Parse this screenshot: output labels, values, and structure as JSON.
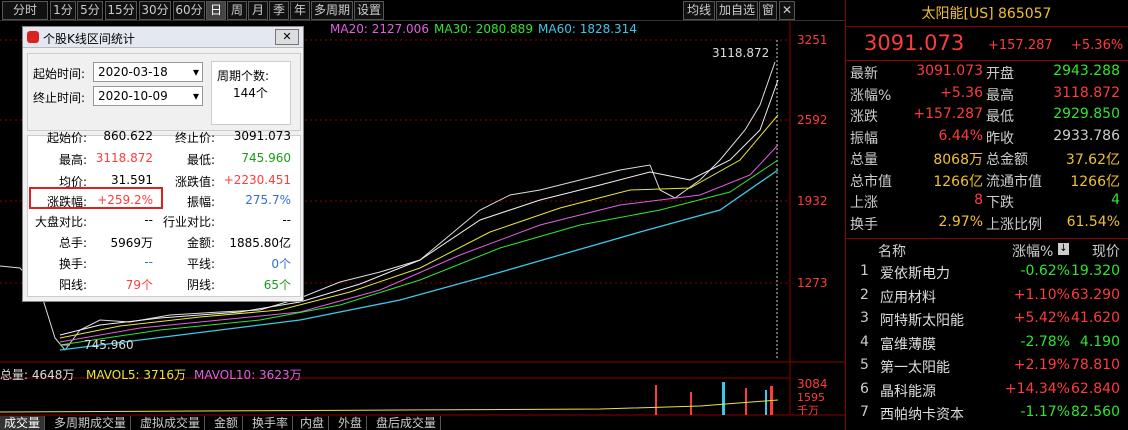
{
  "toolbar": {
    "tabs": [
      "分时",
      "1分",
      "5分",
      "15分",
      "30分",
      "60分",
      "日",
      "周",
      "月",
      "季",
      "年",
      "多周期",
      "设置"
    ],
    "right": [
      "均线",
      "加自选",
      "窗"
    ]
  },
  "chart": {
    "ma_legend": [
      "MA20: 2127.006",
      "MA30: 2080.889",
      "MA60: 1828.314"
    ],
    "price_axis": [
      "3251",
      "2592",
      "1932",
      "1273"
    ],
    "high_label": "3118.872",
    "low_label": "745.960",
    "volume_legend": [
      "总量: 4648万",
      "MAVOL5: 3716万",
      "MAVOL10: 3623万"
    ],
    "volume_axis": [
      "3084",
      "1595",
      "千万"
    ],
    "bottom_tabs": [
      "成交量",
      "多周期成交量",
      "虚拟成交量",
      "金额",
      "换手率",
      "内盘",
      "外盘",
      "盘后成交量"
    ]
  },
  "dialog": {
    "title": "个股K线区间统计",
    "start_label": "起始时间:",
    "start": "2020-03-18",
    "end_label": "终止时间:",
    "end": "2020-10-09",
    "period_label": "周期个数:",
    "period": "144个",
    "rows": [
      [
        "起始价:",
        "860.622",
        "终止价:",
        "3091.073"
      ],
      [
        "最高:",
        "3118.872",
        "最低:",
        "745.960"
      ],
      [
        "均价:",
        "31.591",
        "涨跌值:",
        "+2230.451"
      ],
      [
        "涨跌幅:",
        "+259.2%",
        "振幅:",
        "275.7%"
      ],
      [
        "大盘对比:",
        "--",
        "行业对比:",
        "--"
      ],
      [
        "总手:",
        "5969万",
        "金额:",
        "1885.80亿"
      ],
      [
        "换手:",
        "--",
        "平线:",
        "0个"
      ],
      [
        "阳线:",
        "79个",
        "阴线:",
        "65个"
      ]
    ]
  },
  "quote": {
    "title": "太阳能[US] 865057",
    "price": "3091.073",
    "change": "+157.287",
    "pct": "+5.36%",
    "rows": [
      [
        "最新",
        "3091.073",
        "开盘",
        "2943.288"
      ],
      [
        "涨幅%",
        "+5.36",
        "最高",
        "3118.872"
      ],
      [
        "涨跌",
        "+157.287",
        "最低",
        "2929.850"
      ],
      [
        "振幅",
        "6.44%",
        "昨收",
        "2933.786"
      ],
      [
        "总量",
        "8068万",
        "总金额",
        "37.62亿"
      ],
      [
        "总市值",
        "1266亿",
        "流通市值",
        "1266亿"
      ],
      [
        "上涨",
        "8",
        "下跌",
        "4"
      ],
      [
        "换手",
        "2.97%",
        "上涨比例",
        "61.54%"
      ]
    ],
    "list_header": [
      "名称",
      "涨幅%",
      "现价"
    ],
    "list": [
      [
        "1",
        "爱依斯电力",
        "-0.62%",
        "19.320"
      ],
      [
        "2",
        "应用材料",
        "+1.10%",
        "63.290"
      ],
      [
        "3",
        "阿特斯太阳能",
        "+5.42%",
        "41.620"
      ],
      [
        "4",
        "富维薄膜",
        "-2.78%",
        "4.190"
      ],
      [
        "5",
        "第一太阳能",
        "+2.19%",
        "78.810"
      ],
      [
        "6",
        "晶科能源",
        "+14.34%",
        "62.840"
      ],
      [
        "7",
        "西帕纳卡资本",
        "-1.17%",
        "82.560"
      ]
    ]
  }
}
